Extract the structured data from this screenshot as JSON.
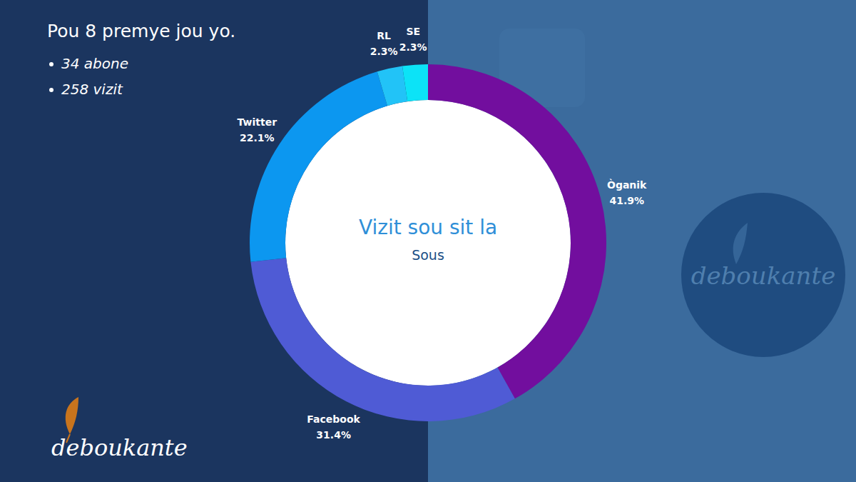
{
  "chart_data": {
    "type": "pie",
    "title": "Pou 8 premye jou yo.",
    "subtitle": "Vizit sou sit la",
    "annotations": [
      "34 abone",
      "258 vizit",
      "Sous"
    ],
    "brand": "deboukante",
    "categories": [
      "Òganik",
      "Facebook",
      "Twitter",
      "RL",
      "SE"
    ],
    "values": [
      41.9,
      31.4,
      22.1,
      2.3,
      2.3
    ],
    "value_labels": [
      "41.9%",
      "31.4%",
      "22.1%",
      "2.3%",
      "2.3%"
    ],
    "colors": [
      "#720e9e",
      "#4f5bd5",
      "#0c97f0",
      "#22c3f7",
      "#0ce3f7"
    ],
    "data_labels": true
  }
}
